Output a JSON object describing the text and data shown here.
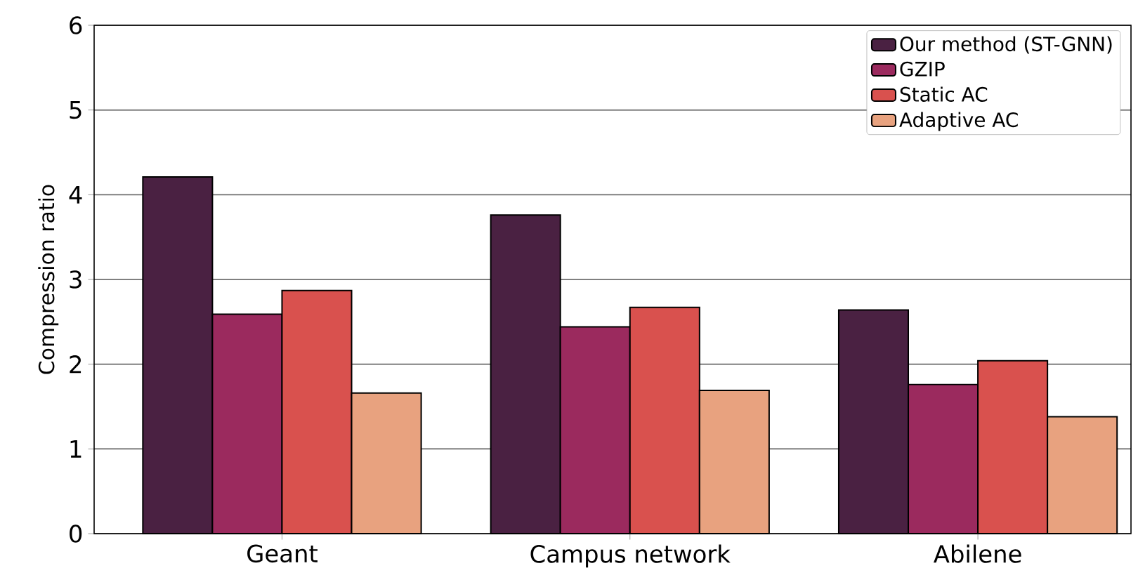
{
  "chart_data": {
    "type": "bar",
    "ylabel": "Compression ratio",
    "categories": [
      "Geant",
      "Campus network",
      "Abilene"
    ],
    "series": [
      {
        "name": "Our method (ST-GNN)",
        "color": "#4a2142",
        "values": [
          4.21,
          3.76,
          2.64
        ]
      },
      {
        "name": "GZIP",
        "color": "#9b2a5e",
        "values": [
          2.59,
          2.44,
          1.76
        ]
      },
      {
        "name": "Static AC",
        "color": "#d9514e",
        "values": [
          2.87,
          2.67,
          2.04
        ]
      },
      {
        "name": "Adaptive AC",
        "color": "#e8a27f",
        "values": [
          1.66,
          1.69,
          1.38
        ]
      }
    ],
    "ylim": [
      0,
      6
    ],
    "yticks": [
      0,
      1,
      2,
      3,
      4,
      5,
      6
    ],
    "grid": "y",
    "legend": "top right"
  }
}
